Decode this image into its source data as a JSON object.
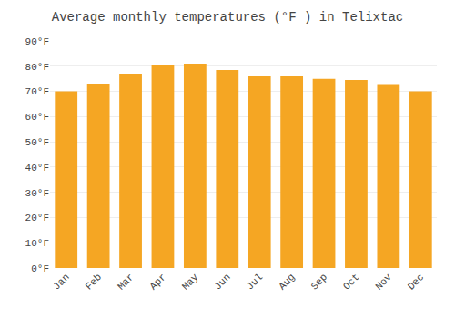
{
  "chart_data": {
    "type": "bar",
    "title": "Average monthly temperatures (°F ) in Telixtac",
    "categories": [
      "Jan",
      "Feb",
      "Mar",
      "Apr",
      "May",
      "Jun",
      "Jul",
      "Aug",
      "Sep",
      "Oct",
      "Nov",
      "Dec"
    ],
    "values": [
      70,
      73,
      77,
      80.5,
      81,
      78.5,
      76,
      76,
      75,
      74.5,
      72.5,
      70
    ],
    "color": "#F5A623",
    "ylim": [
      0,
      90
    ],
    "yticks": [
      {
        "value": 0,
        "label": "0°F"
      },
      {
        "value": 10,
        "label": "10°F"
      },
      {
        "value": 20,
        "label": "20°F"
      },
      {
        "value": 30,
        "label": "30°F"
      },
      {
        "value": 40,
        "label": "40°F"
      },
      {
        "value": 50,
        "label": "50°F"
      },
      {
        "value": 60,
        "label": "60°F"
      },
      {
        "value": 70,
        "label": "70°F"
      },
      {
        "value": 80,
        "label": "80°F"
      },
      {
        "value": 90,
        "label": "90°F"
      }
    ],
    "grid": true
  }
}
